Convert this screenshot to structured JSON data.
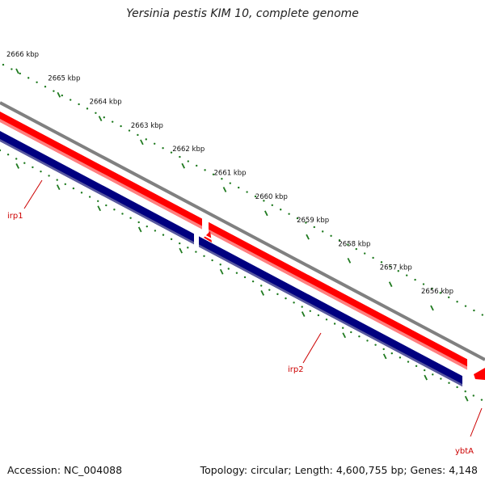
{
  "title": "Yersinia pestis KIM 10, complete genome",
  "footer": {
    "accession": "Accession: NC_004088",
    "summary": "Topology: circular; Length: 4,600,755 bp; Genes: 4,148"
  },
  "ruler": {
    "unit": "kbp",
    "labels": [
      "2666 kbp",
      "2665 kbp",
      "2664 kbp",
      "2663 kbp",
      "2662 kbp",
      "2661 kbp",
      "2660 kbp",
      "2659 kbp",
      "2658 kbp",
      "2657 kbp",
      "2656 kbp"
    ]
  },
  "genes": [
    {
      "name": "irp1",
      "color": "#cc0000"
    },
    {
      "name": "irp2",
      "color": "#cc0000"
    },
    {
      "name": "ybtA",
      "color": "#cc0000"
    }
  ],
  "colors": {
    "backbone": "#808080",
    "forward_strand": "#ff0000",
    "forward_highlight": "#ff8080",
    "reverse_strand": "#000080",
    "reverse_highlight": "#5a5aa0",
    "ruler_ticks": "#1f7a1f",
    "label_line": "#cc0000"
  }
}
